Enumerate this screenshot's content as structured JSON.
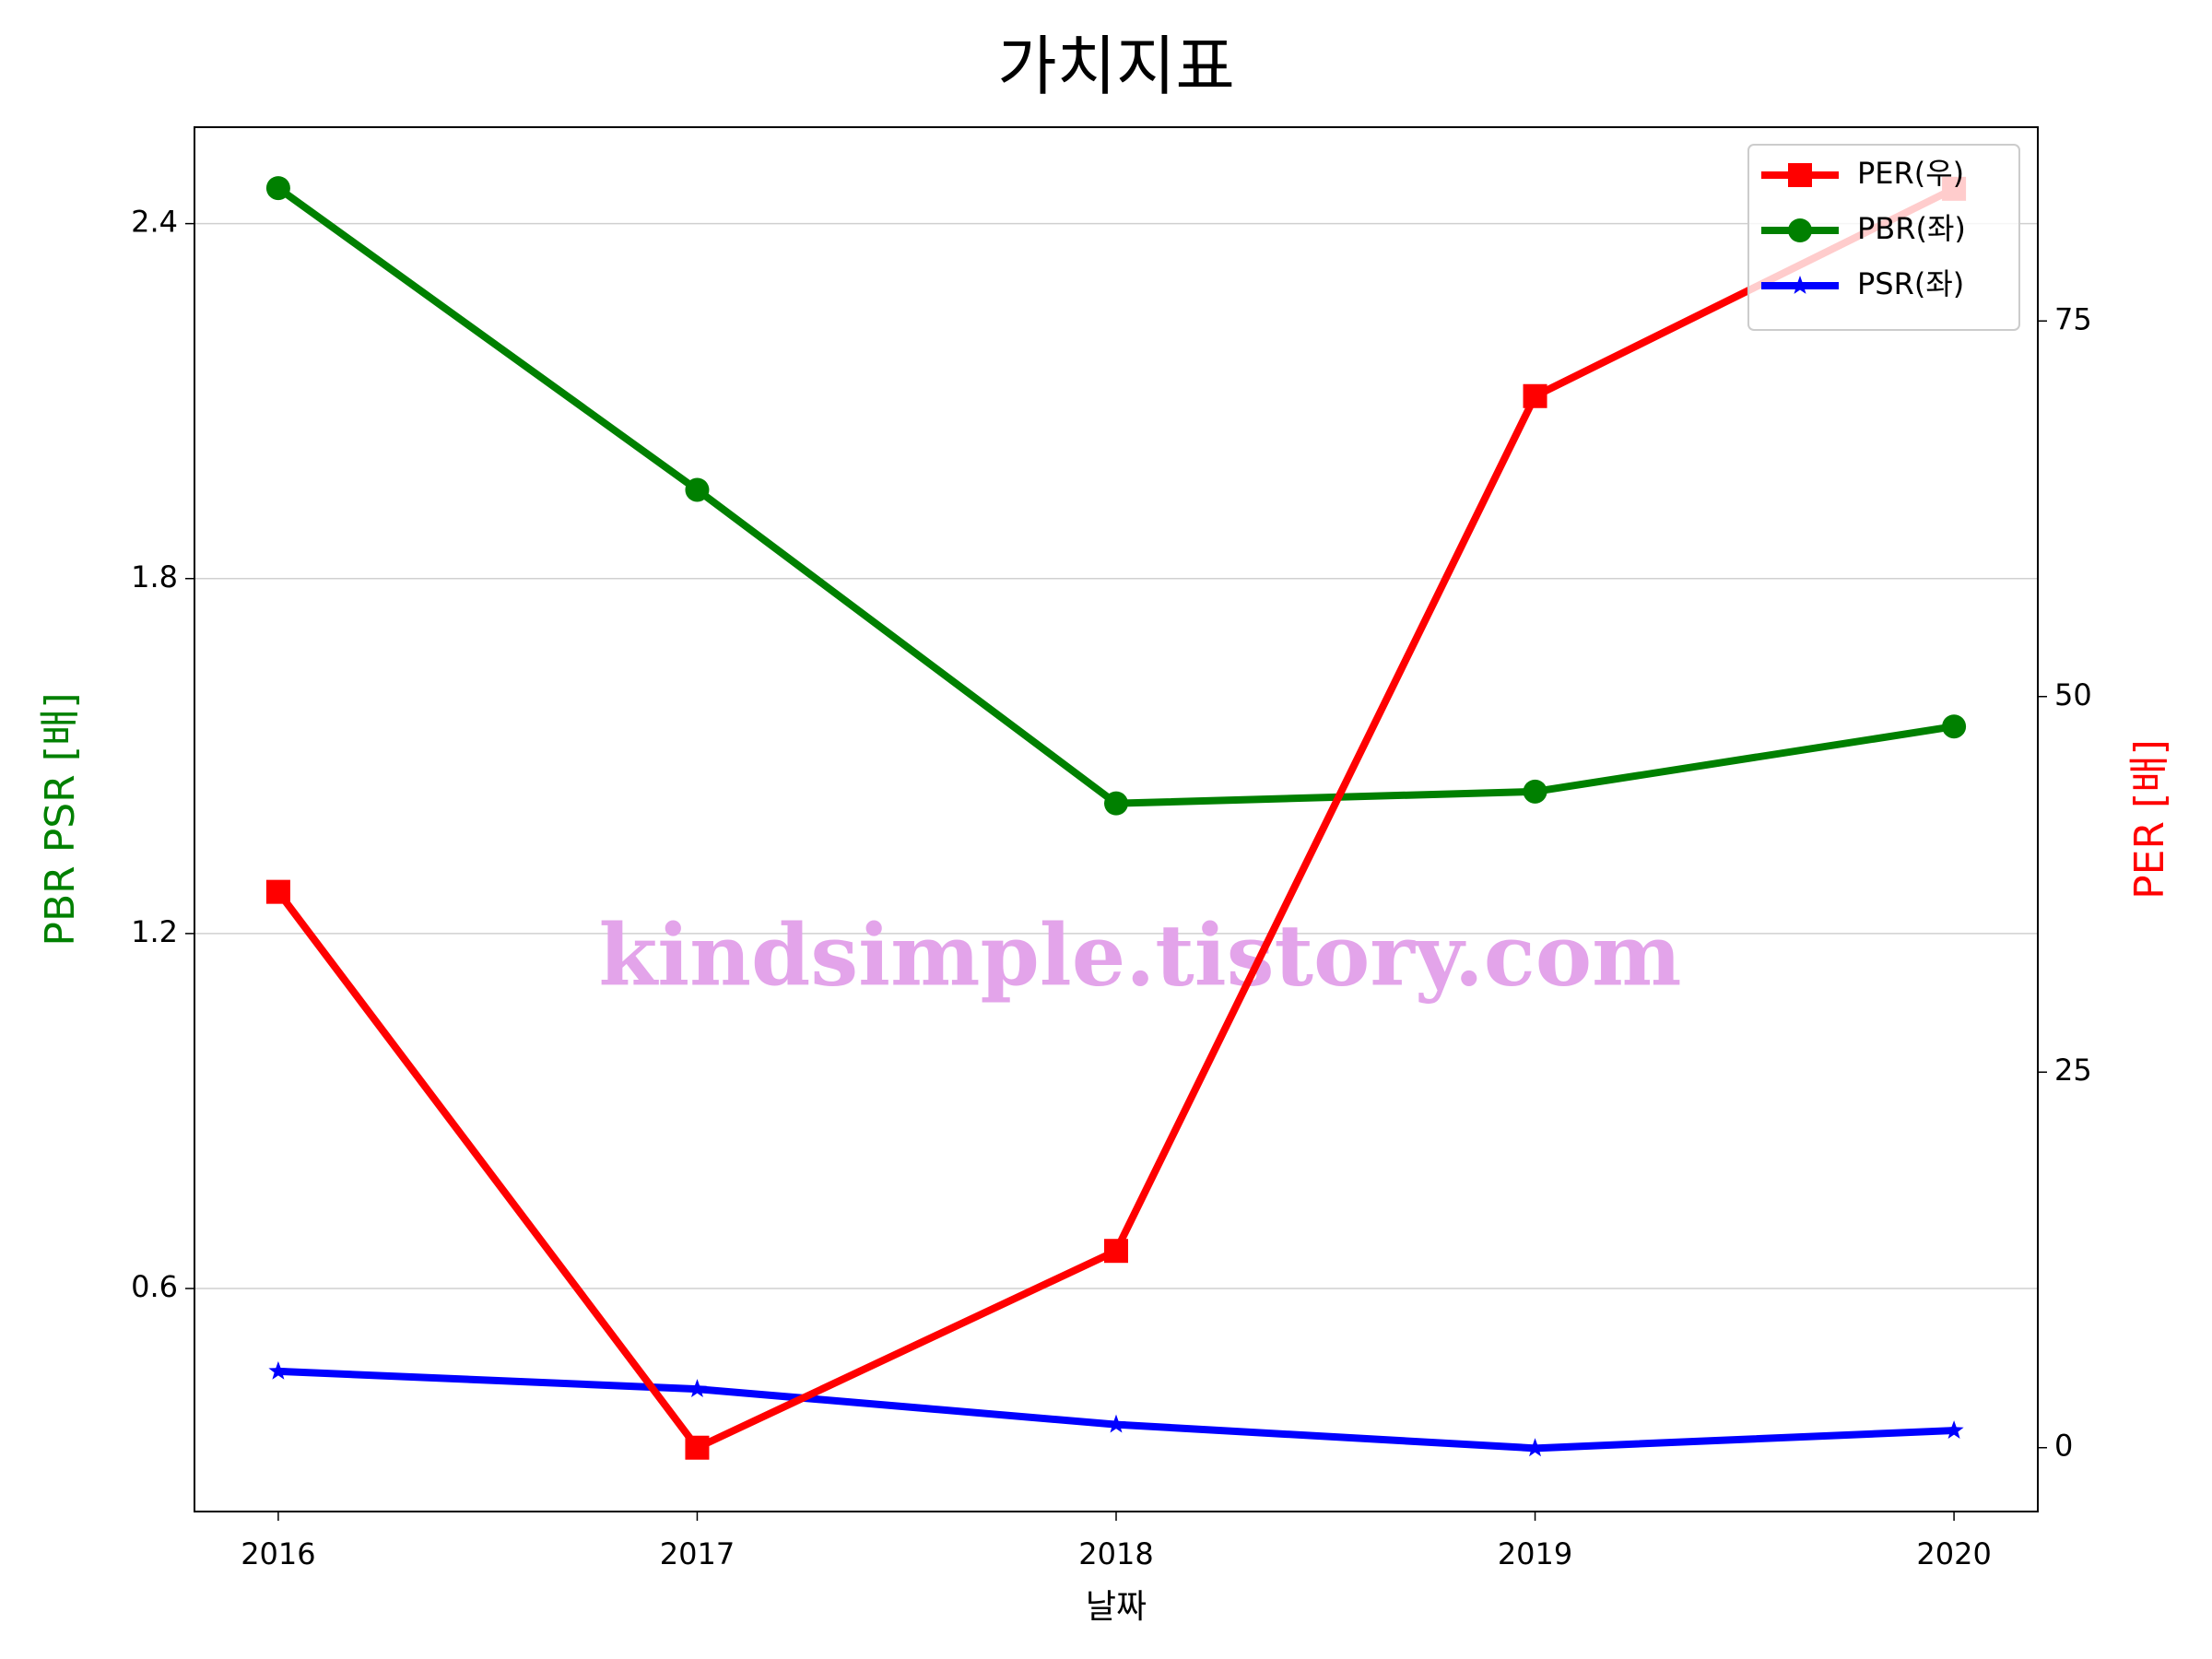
{
  "chart_data": {
    "type": "line",
    "title": "가치지표",
    "x": [
      2016,
      2017,
      2018,
      2019,
      2020
    ],
    "xlim": [
      2015.8,
      2020.2
    ],
    "xticks": [
      2016,
      2017,
      2018,
      2019,
      2020
    ],
    "xlabel": "날짜",
    "ylabel": "PBR PSR [배]",
    "y2label": "PER [배]",
    "ylim": [
      0.223,
      2.563
    ],
    "yticks": [
      0.6,
      1.2,
      1.8,
      2.4
    ],
    "y2lim": [
      -4.25,
      87.9
    ],
    "y2ticks": [
      0,
      25,
      50,
      75
    ],
    "grid": true,
    "legend": "upper right",
    "annotation": "kindsimple.tistory.com",
    "series": [
      {
        "name": "PER(우)",
        "color": "#ff0000",
        "marker": "square",
        "axis": "y2",
        "values": [
          37,
          0,
          13.1,
          70,
          83.8
        ]
      },
      {
        "name": "PBR(좌)",
        "color": "#008000",
        "marker": "circle",
        "values": [
          2.46,
          1.95,
          1.42,
          1.44,
          1.55
        ]
      },
      {
        "name": "PSR(좌)",
        "color": "#0000ff",
        "marker": "star",
        "values": [
          0.46,
          0.43,
          0.37,
          0.33,
          0.36
        ]
      }
    ]
  }
}
